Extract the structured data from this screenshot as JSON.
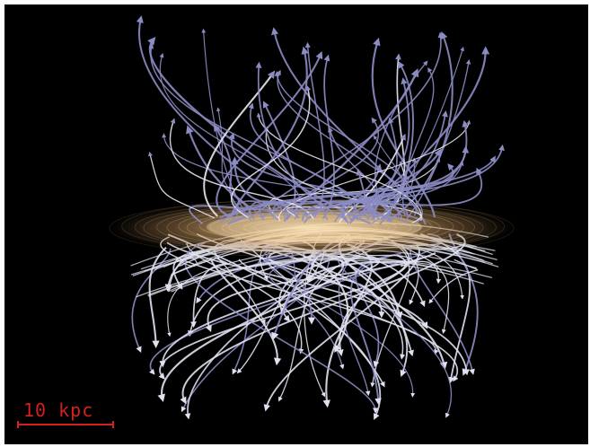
{
  "image": {
    "description_free": true,
    "background_color": "#000000",
    "disk_color": "#f1c98a",
    "field_line_colors": {
      "upper": "#8c8cc4",
      "lower": "#dfe1ef"
    }
  },
  "scale_bar": {
    "label": "10 kpc",
    "color": "#d42020"
  }
}
